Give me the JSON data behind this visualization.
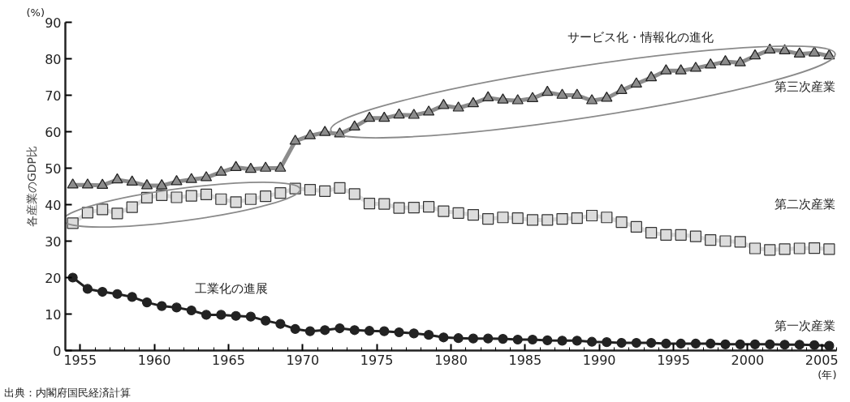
{
  "chart_data": {
    "type": "line",
    "ylabel": "各産業のGDP比",
    "xlabel": "(年)",
    "x": [
      1954.5,
      1955.5,
      1956.5,
      1957.5,
      1958.5,
      1959.5,
      1960.5,
      1961.5,
      1962.5,
      1963.5,
      1964.5,
      1965.5,
      1966.5,
      1967.5,
      1968.5,
      1969.5,
      1970.5,
      1971.5,
      1972.5,
      1973.5,
      1974.5,
      1975.5,
      1976.5,
      1977.5,
      1978.5,
      1979.5,
      1980.5,
      1981.5,
      1982.5,
      1983.5,
      1984.5,
      1985.5,
      1986.5,
      1987.5,
      1988.5,
      1989.5,
      1990.5,
      1991.5,
      1992.5,
      1993.5,
      1994.5,
      1995.5,
      1996.5,
      1997.5,
      1998.5,
      1999.5,
      2000.5,
      2001.5,
      2002.5,
      2003.5,
      2004.5,
      2005.5
    ],
    "series": [
      {
        "name": "第三次産業",
        "color": "#8c8c8c",
        "marker": "triangle",
        "values": [
          45.4,
          45.4,
          45.3,
          46.8,
          46.2,
          45.2,
          45.2,
          46.3,
          46.9,
          47.4,
          48.9,
          50.2,
          49.7,
          50.0,
          50.0,
          57.4,
          58.9,
          59.8,
          59.4,
          61.3,
          63.7,
          63.7,
          64.6,
          64.5,
          65.4,
          67.2,
          66.5,
          67.7,
          69.3,
          68.7,
          68.5,
          69.1,
          70.8,
          70.0,
          70.0,
          68.5,
          69.2,
          71.3,
          73.1,
          74.8,
          76.7,
          76.7,
          77.4,
          78.3,
          79.2,
          78.9,
          80.8,
          82.4,
          82.2,
          81.3,
          81.6,
          80.8
        ]
      },
      {
        "name": "第二次産業",
        "color": "#dcdcdc",
        "marker": "square",
        "values": [
          34.9,
          37.8,
          38.7,
          37.6,
          39.3,
          41.9,
          42.6,
          42.0,
          42.4,
          42.8,
          41.5,
          40.7,
          41.5,
          42.3,
          43.2,
          44.4,
          44.1,
          43.7,
          44.6,
          42.9,
          40.3,
          40.2,
          39.1,
          39.2,
          39.4,
          38.2,
          37.7,
          37.2,
          36.1,
          36.5,
          36.3,
          35.8,
          35.8,
          36.1,
          36.3,
          37.0,
          36.5,
          35.2,
          33.9,
          32.3,
          31.7,
          31.7,
          31.3,
          30.3,
          30.0,
          29.8,
          28.0,
          27.6,
          27.8,
          28.0,
          28.1,
          27.8
        ]
      },
      {
        "name": "第一次産業",
        "color": "#222222",
        "marker": "circle",
        "values": [
          20.0,
          16.9,
          16.1,
          15.5,
          14.7,
          13.2,
          12.2,
          11.8,
          11.0,
          9.8,
          9.8,
          9.5,
          9.3,
          8.2,
          7.3,
          5.9,
          5.3,
          5.6,
          6.1,
          5.6,
          5.4,
          5.3,
          5.0,
          4.7,
          4.3,
          3.6,
          3.4,
          3.3,
          3.3,
          3.2,
          3.0,
          3.0,
          2.8,
          2.7,
          2.7,
          2.4,
          2.3,
          2.1,
          2.1,
          2.1,
          1.9,
          1.9,
          1.9,
          1.9,
          1.7,
          1.7,
          1.7,
          1.7,
          1.6,
          1.6,
          1.5,
          1.3
        ]
      }
    ],
    "xlim": [
      1954,
      2006
    ],
    "ylim": [
      0,
      90
    ],
    "xticks": [
      1955,
      1960,
      1965,
      1970,
      1975,
      1980,
      1985,
      1990,
      1995,
      2000,
      2005
    ],
    "yticks": [
      0,
      10,
      20,
      30,
      40,
      50,
      60,
      70,
      80,
      90
    ],
    "grid": false,
    "annotations": [
      "工業化の進展",
      "サービス化・情報化の進化",
      "(%)",
      "出典：内閣府国民経済計算"
    ]
  }
}
